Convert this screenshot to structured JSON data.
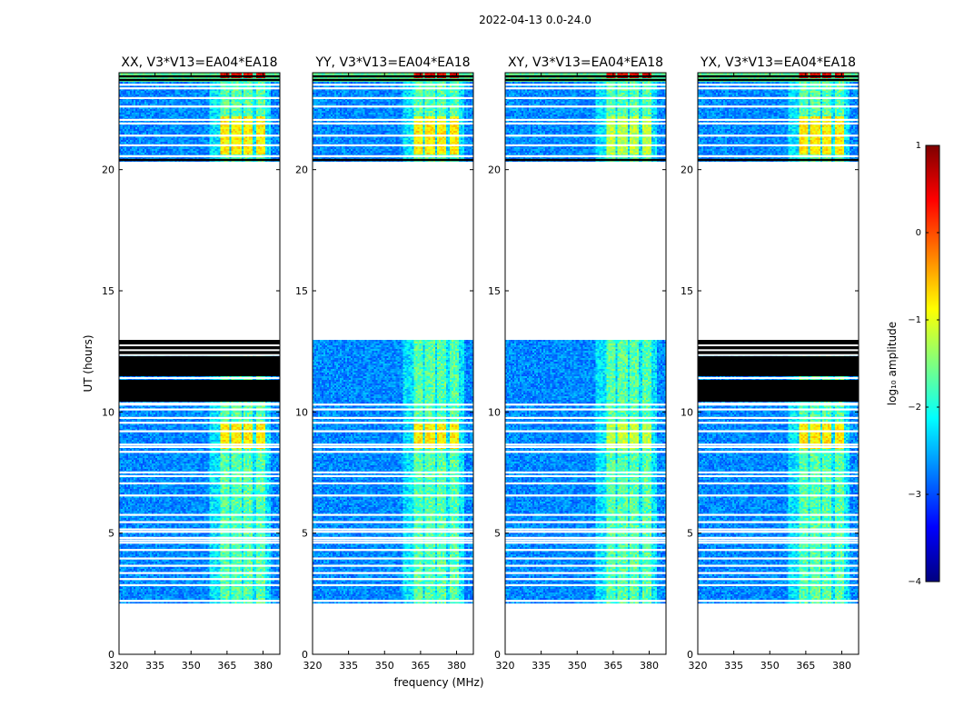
{
  "figure_title": "2022-04-13 0.0-24.0",
  "chart_data": {
    "type": "heatmap",
    "title": "2022-04-13 0.0-24.0",
    "xlabel": "frequency (MHz)",
    "ylabel": "UT (hours)",
    "xlim": [
      320,
      387
    ],
    "ylim": [
      0,
      24
    ],
    "xticks": [
      "320",
      "335",
      "350",
      "365",
      "380"
    ],
    "yticks": [
      "0",
      "5",
      "10",
      "15",
      "20"
    ],
    "panels": [
      {
        "title": "XX, V3*V13=EA04*EA18",
        "flagged_black_hours": [
          [
            10.4,
            11.3
          ],
          [
            11.5,
            12.3
          ],
          [
            12.4,
            12.95
          ]
        ],
        "night_bright": true
      },
      {
        "title": "YY, V3*V13=EA04*EA18",
        "flagged_black_hours": [],
        "night_bright": true
      },
      {
        "title": "XY, V3*V13=EA04*EA18",
        "flagged_black_hours": [],
        "night_bright": false
      },
      {
        "title": "YX, V3*V13=EA04*EA18",
        "flagged_black_hours": [
          [
            10.4,
            11.3
          ],
          [
            11.5,
            12.3
          ],
          [
            12.4,
            12.95
          ]
        ],
        "night_bright": true
      }
    ],
    "data_coverage_hours": [
      [
        2.0,
        13.0
      ],
      [
        20.3,
        24.0
      ]
    ],
    "rfi_channels_mhz": [
      [
        362,
        366
      ],
      [
        367,
        371
      ],
      [
        372,
        376
      ],
      [
        377,
        381
      ]
    ],
    "colorbar": {
      "label": "log₁₀ amplitude",
      "range": [
        -4,
        1
      ],
      "ticks": [
        "−4",
        "−3",
        "−2",
        "−1",
        "0",
        "1"
      ],
      "colormap": "jet"
    }
  },
  "colors": {
    "jet": [
      "#00007f",
      "#0000ff",
      "#007fff",
      "#00ffff",
      "#7fff7f",
      "#ffff00",
      "#ff7f00",
      "#ff0000",
      "#7f0000"
    ],
    "flag": "#000000",
    "axis": "#000000"
  }
}
